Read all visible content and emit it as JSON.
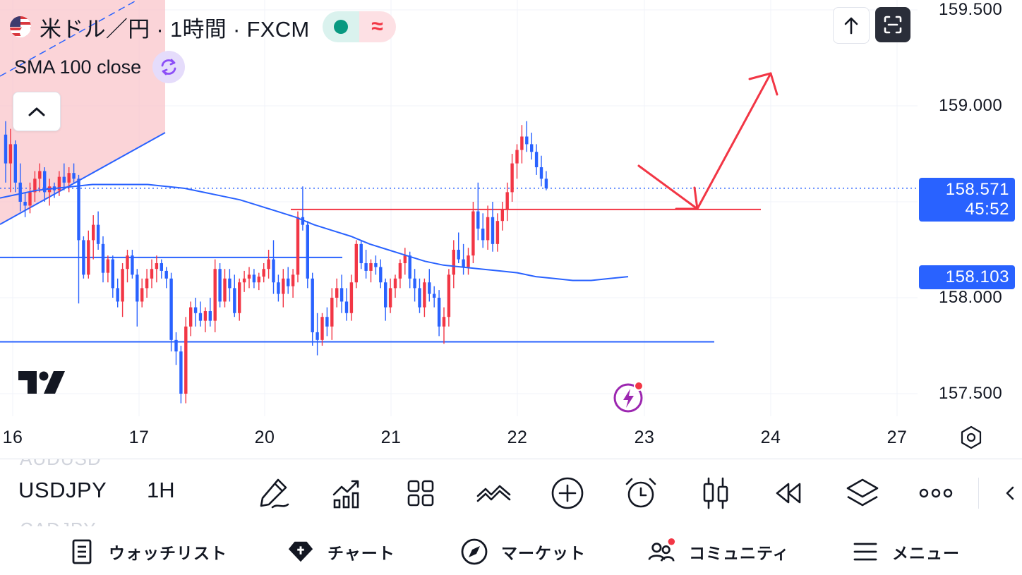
{
  "legend": {
    "symbol_title": "米ドル／円 · 1時間 · FXCM",
    "indicator_label": "SMA 100 close",
    "status_icon_right": "≈"
  },
  "price_scale": {
    "labels": [
      "159.500",
      "159.000",
      "158.000",
      "157.500"
    ],
    "current_price": "158.571",
    "countdown": "45:52",
    "sma_value": "158.103"
  },
  "time_scale": {
    "labels": [
      "16",
      "17",
      "20",
      "21",
      "22",
      "23",
      "24",
      "27"
    ]
  },
  "toolbar": {
    "symbol": "USDJPY",
    "interval": "1H",
    "ghost_prev_symbol": "AUDUSD",
    "ghost_next_symbol": "CADJPY"
  },
  "bottom_nav": {
    "items": [
      {
        "label": "ウォッチリスト",
        "icon": "watchlist-icon"
      },
      {
        "label": "チャート",
        "icon": "chart-icon"
      },
      {
        "label": "マーケット",
        "icon": "compass-icon"
      },
      {
        "label": "コミュニティ",
        "icon": "community-icon"
      },
      {
        "label": "メニュー",
        "icon": "menu-icon"
      }
    ]
  },
  "colors": {
    "up": "#f23645",
    "down": "#2962ff",
    "sma": "#2962ff",
    "accent": "#2962ff",
    "annotation": "#f23645"
  },
  "chart_data": {
    "type": "candlestick",
    "symbol": "USDJPY",
    "interval": "1H",
    "ylim": [
      157.35,
      159.55
    ],
    "x_tick_labels": [
      "16",
      "17",
      "20",
      "21",
      "22",
      "23",
      "24",
      "27"
    ],
    "current_price": 158.571,
    "candles_ohlc": [
      [
        158.85,
        158.92,
        158.6,
        158.7
      ],
      [
        158.7,
        158.88,
        158.55,
        158.8
      ],
      [
        158.8,
        158.82,
        158.55,
        158.6
      ],
      [
        158.6,
        158.7,
        158.45,
        158.5
      ],
      [
        158.5,
        158.55,
        158.42,
        158.48
      ],
      [
        158.48,
        158.6,
        158.44,
        158.55
      ],
      [
        158.55,
        158.66,
        158.5,
        158.62
      ],
      [
        158.62,
        158.7,
        158.55,
        158.66
      ],
      [
        158.66,
        158.68,
        158.5,
        158.55
      ],
      [
        158.55,
        158.62,
        158.48,
        158.58
      ],
      [
        158.58,
        158.6,
        158.52,
        158.56
      ],
      [
        158.56,
        158.66,
        158.53,
        158.63
      ],
      [
        158.63,
        158.7,
        158.56,
        158.6
      ],
      [
        158.6,
        158.68,
        158.55,
        158.65
      ],
      [
        158.65,
        158.7,
        158.6,
        158.62
      ],
      [
        158.62,
        158.64,
        157.97,
        158.3
      ],
      [
        158.3,
        158.32,
        158.1,
        158.12
      ],
      [
        158.12,
        158.35,
        158.1,
        158.3
      ],
      [
        158.3,
        158.43,
        158.2,
        158.38
      ],
      [
        158.38,
        158.45,
        158.25,
        158.28
      ],
      [
        158.28,
        158.32,
        158.08,
        158.13
      ],
      [
        158.13,
        158.22,
        158.08,
        158.2
      ],
      [
        158.2,
        158.22,
        158.0,
        158.05
      ],
      [
        158.05,
        158.1,
        157.95,
        157.98
      ],
      [
        157.98,
        158.18,
        157.9,
        158.15
      ],
      [
        158.15,
        158.25,
        158.08,
        158.22
      ],
      [
        158.22,
        158.25,
        158.1,
        158.12
      ],
      [
        158.12,
        158.15,
        157.85,
        157.98
      ],
      [
        157.98,
        158.1,
        157.95,
        158.05
      ],
      [
        158.05,
        158.15,
        158.0,
        158.1
      ],
      [
        158.1,
        158.2,
        158.05,
        158.15
      ],
      [
        158.15,
        158.22,
        158.08,
        158.18
      ],
      [
        158.18,
        158.2,
        158.1,
        158.14
      ],
      [
        158.14,
        158.16,
        158.05,
        158.1
      ],
      [
        158.1,
        158.13,
        157.72,
        157.78
      ],
      [
        157.78,
        157.82,
        157.65,
        157.72
      ],
      [
        157.72,
        157.75,
        157.45,
        157.5
      ],
      [
        157.5,
        157.9,
        157.45,
        157.85
      ],
      [
        157.85,
        157.98,
        157.8,
        157.95
      ],
      [
        157.95,
        158.0,
        157.85,
        157.92
      ],
      [
        157.92,
        157.98,
        157.85,
        157.88
      ],
      [
        157.88,
        157.95,
        157.82,
        157.93
      ],
      [
        157.93,
        158.0,
        157.85,
        157.88
      ],
      [
        157.88,
        158.2,
        157.82,
        158.15
      ],
      [
        158.15,
        158.18,
        157.95,
        157.98
      ],
      [
        157.98,
        158.15,
        157.95,
        158.1
      ],
      [
        158.1,
        158.15,
        157.98,
        158.05
      ],
      [
        158.05,
        158.12,
        157.9,
        157.92
      ],
      [
        157.92,
        158.1,
        157.88,
        158.08
      ],
      [
        158.08,
        158.14,
        158.03,
        158.1
      ],
      [
        158.1,
        158.16,
        158.05,
        158.12
      ],
      [
        158.12,
        158.15,
        158.05,
        158.08
      ],
      [
        158.08,
        158.13,
        158.04,
        158.11
      ],
      [
        158.11,
        158.18,
        158.08,
        158.15
      ],
      [
        158.15,
        158.25,
        158.1,
        158.2
      ],
      [
        158.2,
        158.3,
        158.02,
        158.08
      ],
      [
        158.08,
        158.12,
        157.98,
        158.02
      ],
      [
        158.02,
        158.15,
        157.95,
        158.1
      ],
      [
        158.1,
        158.16,
        158.02,
        158.06
      ],
      [
        158.06,
        158.15,
        158.0,
        158.12
      ],
      [
        158.12,
        158.45,
        158.08,
        158.42
      ],
      [
        158.42,
        158.58,
        158.35,
        158.38
      ],
      [
        158.38,
        158.4,
        158.05,
        158.1
      ],
      [
        158.1,
        158.13,
        157.75,
        157.82
      ],
      [
        157.82,
        157.92,
        157.7,
        157.78
      ],
      [
        157.78,
        157.92,
        157.75,
        157.9
      ],
      [
        157.9,
        157.95,
        157.8,
        157.85
      ],
      [
        157.85,
        158.05,
        157.78,
        158.0
      ],
      [
        158.0,
        158.1,
        157.95,
        158.05
      ],
      [
        158.05,
        158.12,
        157.92,
        157.98
      ],
      [
        157.98,
        158.05,
        157.88,
        157.92
      ],
      [
        157.92,
        158.12,
        157.88,
        158.08
      ],
      [
        158.08,
        158.3,
        158.05,
        158.28
      ],
      [
        158.28,
        158.3,
        158.15,
        158.18
      ],
      [
        158.18,
        158.25,
        158.1,
        158.14
      ],
      [
        158.14,
        158.2,
        158.08,
        158.18
      ],
      [
        158.18,
        158.22,
        158.12,
        158.16
      ],
      [
        158.16,
        158.2,
        158.05,
        158.08
      ],
      [
        158.08,
        158.1,
        157.88,
        157.95
      ],
      [
        157.95,
        158.1,
        157.92,
        158.05
      ],
      [
        158.05,
        158.12,
        158.0,
        158.1
      ],
      [
        158.1,
        158.2,
        158.05,
        158.18
      ],
      [
        158.18,
        158.26,
        158.12,
        158.22
      ],
      [
        158.22,
        158.24,
        158.05,
        158.1
      ],
      [
        158.1,
        158.15,
        157.98,
        158.05
      ],
      [
        158.05,
        158.1,
        157.92,
        157.95
      ],
      [
        157.95,
        158.1,
        157.9,
        158.08
      ],
      [
        158.08,
        158.15,
        157.98,
        158.02
      ],
      [
        158.02,
        158.06,
        157.95,
        158.0
      ],
      [
        158.0,
        158.04,
        157.8,
        157.85
      ],
      [
        157.85,
        157.95,
        157.76,
        157.9
      ],
      [
        157.9,
        158.15,
        157.85,
        158.12
      ],
      [
        158.12,
        158.3,
        158.05,
        158.25
      ],
      [
        158.25,
        158.34,
        158.18,
        158.2
      ],
      [
        158.2,
        158.28,
        158.12,
        158.16
      ],
      [
        158.16,
        158.26,
        158.12,
        158.22
      ],
      [
        158.22,
        158.5,
        158.18,
        158.45
      ],
      [
        158.45,
        158.6,
        158.3,
        158.36
      ],
      [
        158.36,
        158.44,
        158.26,
        158.3
      ],
      [
        158.3,
        158.48,
        158.25,
        158.42
      ],
      [
        158.42,
        158.5,
        158.24,
        158.28
      ],
      [
        158.28,
        158.44,
        158.24,
        158.4
      ],
      [
        158.4,
        158.5,
        158.35,
        158.46
      ],
      [
        158.46,
        158.6,
        158.4,
        158.55
      ],
      [
        158.55,
        158.75,
        158.5,
        158.7
      ],
      [
        158.7,
        158.8,
        158.62,
        158.77
      ],
      [
        158.77,
        158.9,
        158.7,
        158.84
      ],
      [
        158.84,
        158.92,
        158.76,
        158.8
      ],
      [
        158.8,
        158.86,
        158.72,
        158.76
      ],
      [
        158.76,
        158.8,
        158.64,
        158.68
      ],
      [
        158.68,
        158.74,
        158.58,
        158.62
      ],
      [
        158.62,
        158.66,
        158.56,
        158.57
      ]
    ],
    "sma_100": [
      158.52,
      158.54,
      158.56,
      158.57,
      158.58,
      158.59,
      158.59,
      158.59,
      158.59,
      158.58,
      158.57,
      158.55,
      158.53,
      158.51,
      158.48,
      158.45,
      158.42,
      158.38,
      158.35,
      158.32,
      158.28,
      158.25,
      158.22,
      158.19,
      158.17,
      158.16,
      158.15,
      158.14,
      158.13,
      158.11,
      158.1,
      158.09,
      158.09,
      158.1,
      158.11
    ],
    "annotations": {
      "resistance_level": 158.46,
      "support_level_1": 158.21,
      "support_level_2": 157.77,
      "channel_line": "rising"
    }
  }
}
